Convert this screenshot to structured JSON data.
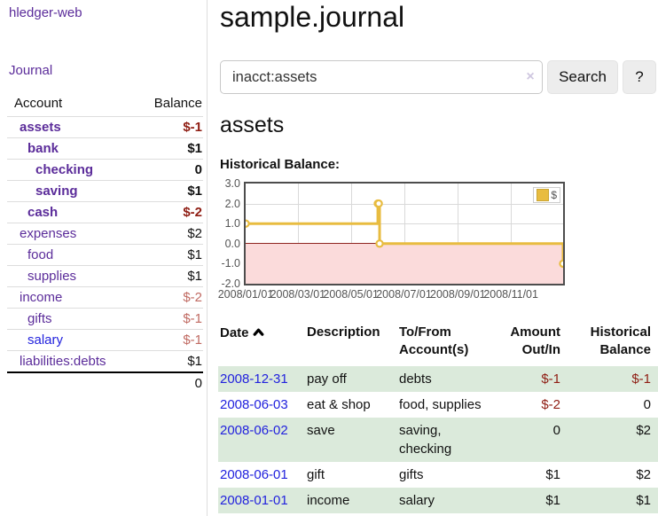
{
  "app": {
    "brand": "hledger-web",
    "nav_journal": "Journal"
  },
  "sidebar": {
    "accounts_table": {
      "headers": {
        "account": "Account",
        "balance": "Balance"
      },
      "rows": [
        {
          "name": "assets",
          "balance": "$-1",
          "indent": 0,
          "bold": true,
          "name_color": "purple",
          "balance_tone": "neg"
        },
        {
          "name": "bank",
          "balance": "$1",
          "indent": 1,
          "bold": true,
          "name_color": "purple",
          "balance_tone": "pos"
        },
        {
          "name": "checking",
          "balance": "0",
          "indent": 2,
          "bold": true,
          "name_color": "purple",
          "balance_tone": "pos"
        },
        {
          "name": "saving",
          "balance": "$1",
          "indent": 2,
          "bold": true,
          "name_color": "purple",
          "balance_tone": "pos"
        },
        {
          "name": "cash",
          "balance": "$-2",
          "indent": 1,
          "bold": true,
          "name_color": "purple",
          "balance_tone": "neg"
        },
        {
          "name": "expenses",
          "balance": "$2",
          "indent": 0,
          "bold": false,
          "name_color": "purple",
          "balance_tone": "pos"
        },
        {
          "name": "food",
          "balance": "$1",
          "indent": 1,
          "bold": false,
          "name_color": "purple",
          "balance_tone": "pos"
        },
        {
          "name": "supplies",
          "balance": "$1",
          "indent": 1,
          "bold": false,
          "name_color": "purple",
          "balance_tone": "pos"
        },
        {
          "name": "income",
          "balance": "$-2",
          "indent": 0,
          "bold": false,
          "name_color": "purple",
          "balance_tone": "neg"
        },
        {
          "name": "gifts",
          "balance": "$-1",
          "indent": 1,
          "bold": false,
          "name_color": "purple",
          "balance_tone": "neg"
        },
        {
          "name": "salary",
          "balance": "$-1",
          "indent": 1,
          "bold": false,
          "name_color": "blue",
          "balance_tone": "neg"
        },
        {
          "name": "liabilities:debts",
          "balance": "$1",
          "indent": 0,
          "bold": false,
          "name_color": "purple",
          "balance_tone": "pos"
        }
      ],
      "total": "0"
    }
  },
  "main": {
    "title": "sample.journal",
    "search": {
      "value": "inacct:assets",
      "clear_icon": "×",
      "search_button": "Search",
      "help_button": "?"
    },
    "account_heading": "assets",
    "chart_heading": "Historical Balance:"
  },
  "chart_data": {
    "type": "line",
    "style": "steps",
    "title": "Historical Balance",
    "xrange": [
      "2008/01/01",
      "2008/12/31"
    ],
    "ylim": [
      -2.0,
      3.0
    ],
    "ytick_labels": [
      "3.0",
      "2.0",
      "1.0",
      "0.0",
      "-1.0",
      "-2.0"
    ],
    "yticks": [
      3.0,
      2.0,
      1.0,
      0.0,
      -1.0,
      -2.0
    ],
    "xticks": [
      "2008/01/01",
      "2008/03/01",
      "2008/05/01",
      "2008/07/01",
      "2008/09/01",
      "2008/11/01"
    ],
    "series": [
      {
        "name": "$",
        "points": [
          [
            "2008/01/01",
            1
          ],
          [
            "2008/06/01",
            2
          ],
          [
            "2008/06/02",
            2
          ],
          [
            "2008/06/03",
            0
          ],
          [
            "2008/12/31",
            -1
          ]
        ]
      }
    ],
    "legend": {
      "label": "$",
      "position": "top-right"
    },
    "grid": true,
    "colors": {
      "line": "#e8bc40",
      "marker_fill": "#ffffff",
      "negative_region": "#fbdbdb",
      "zero_line": "#8e2620",
      "gridline": "#d9d9d9",
      "plot_border": "#4d4d4d"
    }
  },
  "register_table": {
    "headers": {
      "date": "Date",
      "description": "Description",
      "accounts": "To/From Account(s)",
      "amount": "Amount Out/In",
      "balance": "Historical Balance"
    },
    "rows": [
      {
        "date": "2008-12-31",
        "description": "pay off",
        "accounts": "debts",
        "amount": "$-1",
        "balance": "$-1",
        "amount_tone": "neg",
        "balance_tone": "neg"
      },
      {
        "date": "2008-06-03",
        "description": "eat & shop",
        "accounts": "food, supplies",
        "amount": "$-2",
        "balance": "0",
        "amount_tone": "neg",
        "balance_tone": "pos"
      },
      {
        "date": "2008-06-02",
        "description": "save",
        "accounts": "saving, checking",
        "amount": "0",
        "balance": "$2",
        "amount_tone": "pos",
        "balance_tone": "pos"
      },
      {
        "date": "2008-06-01",
        "description": "gift",
        "accounts": "gifts",
        "amount": "$1",
        "balance": "$2",
        "amount_tone": "pos",
        "balance_tone": "pos"
      },
      {
        "date": "2008-01-01",
        "description": "income",
        "accounts": "salary",
        "amount": "$1",
        "balance": "$1",
        "amount_tone": "pos",
        "balance_tone": "pos"
      }
    ]
  }
}
